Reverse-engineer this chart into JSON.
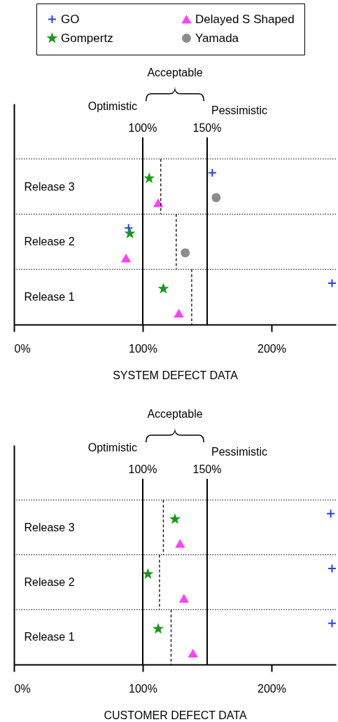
{
  "chart_data": [
    {
      "type": "scatter",
      "orientation": "horizontal",
      "xlabel": "SYSTEM DEFECT DATA",
      "categories": [
        null,
        "Release 3",
        "Release 2",
        "Release 1"
      ],
      "xlim": [
        0,
        250
      ],
      "xticks": [
        {
          "value": 0,
          "label": "0%"
        },
        {
          "value": 100,
          "label": "100%"
        },
        {
          "value": 200,
          "label": "200%"
        }
      ],
      "grid": "y",
      "legend": "top",
      "series": [
        {
          "type": "box",
          "color": "#000000",
          "line_style": "dashed",
          "boxes": [
            null,
            {
              "low": 114,
              "q1": 114,
              "median": 114,
              "q3": 114,
              "high": 114
            },
            {
              "low": 126,
              "q1": 126,
              "median": 126,
              "q3": 126,
              "high": 126
            },
            {
              "low": 138,
              "q1": 138,
              "median": 138,
              "q3": 138,
              "high": 138
            }
          ]
        },
        {
          "name": "GO",
          "color": "#1f3fff",
          "marker": "cross",
          "values": [
            null,
            154,
            89,
            247
          ]
        },
        {
          "name": "Gompertz",
          "color": "#1a9a1a",
          "marker": "star",
          "values": [
            null,
            105,
            90,
            116
          ]
        },
        {
          "name": "Delayed S Shaped",
          "color": "#ff40ff",
          "marker": "triangle",
          "values": [
            null,
            112,
            87,
            128
          ]
        },
        {
          "name": "Yamada",
          "color": "#8c8c8c",
          "marker": "circle",
          "values": [
            null,
            157,
            133,
            null
          ]
        }
      ],
      "ref_lines": [
        {
          "axis": "x",
          "value": 100,
          "label": "100%",
          "color": "#000000"
        },
        {
          "axis": "x",
          "value": 150,
          "label": "150%",
          "color": "#000000"
        }
      ],
      "annotations": [
        "Acceptable",
        "Optimistic",
        "Pessimistic"
      ]
    },
    {
      "type": "scatter",
      "orientation": "horizontal",
      "xlabel": "CUSTOMER DEFECT DATA",
      "categories": [
        null,
        "Release 3",
        "Release 2",
        "Release 1"
      ],
      "xlim": [
        0,
        250
      ],
      "xticks": [
        {
          "value": 0,
          "label": "0%"
        },
        {
          "value": 100,
          "label": "100%"
        },
        {
          "value": 200,
          "label": "200%"
        }
      ],
      "grid": "y",
      "series": [
        {
          "type": "box",
          "color": "#000000",
          "line_style": "dashed",
          "boxes": [
            null,
            {
              "low": 116,
              "q1": 116,
              "median": 116,
              "q3": 116,
              "high": 116
            },
            {
              "low": 113,
              "q1": 113,
              "median": 113,
              "q3": 113,
              "high": 113
            },
            {
              "low": 122,
              "q1": 122,
              "median": 122,
              "q3": 122,
              "high": 122
            }
          ]
        },
        {
          "color": "#1f3fff",
          "marker": "cross",
          "values": [
            null,
            246,
            247,
            247
          ]
        },
        {
          "color": "#1a9a1a",
          "marker": "star",
          "values": [
            null,
            125,
            104,
            112
          ]
        },
        {
          "color": "#ff40ff",
          "marker": "triangle",
          "values": [
            null,
            129,
            132,
            139
          ]
        }
      ],
      "ref_lines": [
        {
          "axis": "x",
          "value": 100,
          "label": "100%",
          "color": "#000000"
        },
        {
          "axis": "x",
          "value": 150,
          "label": "150%",
          "color": "#000000"
        }
      ],
      "annotations": [
        "Acceptable",
        "Optimistic",
        "Pessimistic"
      ]
    }
  ]
}
